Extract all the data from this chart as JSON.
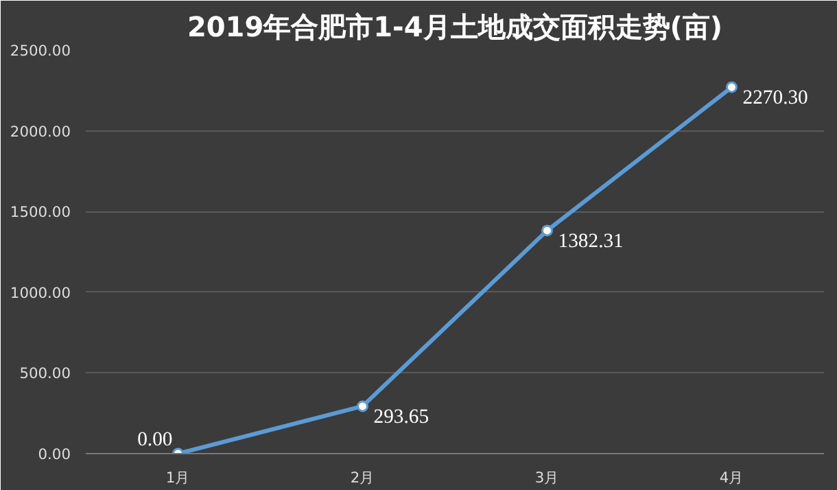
{
  "chart_data": {
    "type": "line",
    "title": "2019年合肥市1-4月土地成交面积走势(亩)",
    "categories": [
      "1月",
      "2月",
      "3月",
      "4月"
    ],
    "series": [
      {
        "color": "#5b9bd5",
        "values": [
          0,
          293.65,
          1382.31,
          2270.3
        ],
        "value_labels": [
          "0.00",
          "293.65",
          "1382.31",
          "2270.30"
        ]
      }
    ],
    "ylim": [
      0,
      2500
    ],
    "yticks": [
      {
        "value": 0,
        "label": "0.00"
      },
      {
        "value": 500,
        "label": "500.00"
      },
      {
        "value": 1000,
        "label": "1000.00"
      },
      {
        "value": 1500,
        "label": "1500.00"
      },
      {
        "value": 2000,
        "label": "2000.00"
      },
      {
        "value": 2500,
        "label": "2500.00"
      }
    ],
    "grid": "y",
    "marker": "circle",
    "line_style": "solid"
  }
}
